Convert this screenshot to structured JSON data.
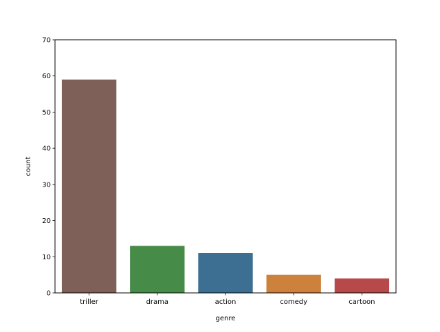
{
  "chart_data": {
    "type": "bar",
    "categories": [
      "triller",
      "drama",
      "action",
      "comedy",
      "cartoon"
    ],
    "values": [
      59,
      13,
      11,
      5,
      4
    ],
    "colors": [
      "#7f6059",
      "#478b48",
      "#3d6f93",
      "#cc823d",
      "#b8494b"
    ],
    "title": "",
    "xlabel": "genre",
    "ylabel": "count",
    "ylim": [
      0,
      70
    ],
    "yticks": [
      0,
      10,
      20,
      30,
      40,
      50,
      60,
      70
    ],
    "grid": false,
    "legend": "none"
  }
}
